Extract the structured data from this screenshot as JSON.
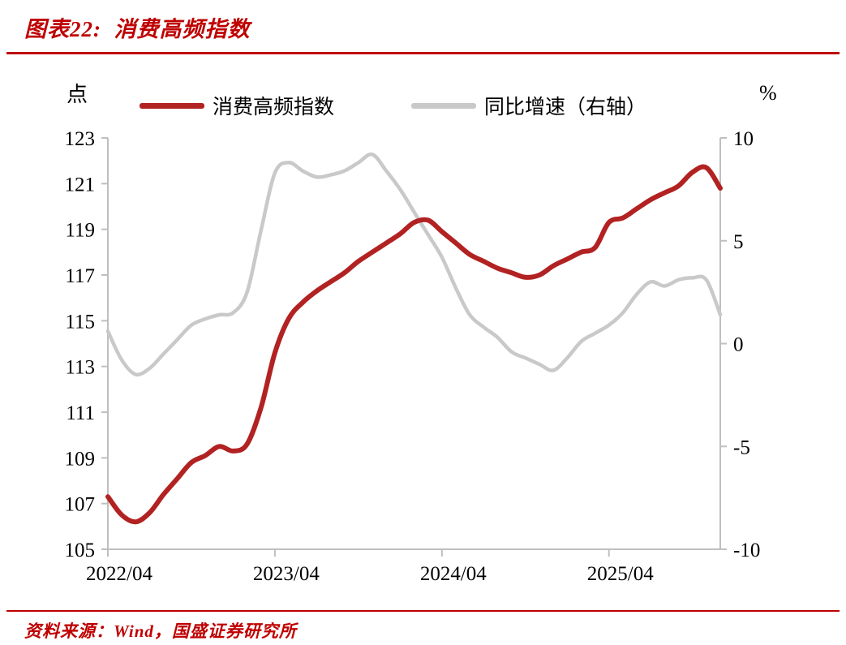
{
  "page": {
    "title": "图表22:  消费高频指数",
    "source": "资料来源：Wind，国盛证券研究所"
  },
  "colors": {
    "accent_red": "#bf0000",
    "line_red": "#b22222",
    "line_gray": "#c9c9c9",
    "axis_gray": "#bfbfbf",
    "text_black": "#000000"
  },
  "chart_data": {
    "type": "line",
    "title": "消费高频指数",
    "grid": false,
    "legend_position": "top",
    "left_axis": {
      "label": "点",
      "min": 105,
      "max": 123,
      "tick_step": 2,
      "ticks": [
        123,
        121,
        119,
        117,
        115,
        113,
        111,
        109,
        107,
        105
      ]
    },
    "right_axis": {
      "label": "%",
      "min": -10,
      "max": 10,
      "tick_step": 5,
      "ticks": [
        10,
        5,
        0,
        -5,
        -10
      ]
    },
    "x_tick_labels": [
      "2022/04",
      "2023/04",
      "2024/04",
      "2025/04"
    ],
    "x": [
      "2022/04",
      "2022/05",
      "2022/06",
      "2022/07",
      "2022/08",
      "2022/09",
      "2022/10",
      "2022/11",
      "2022/12",
      "2023/01",
      "2023/02",
      "2023/03",
      "2023/04",
      "2023/05",
      "2023/06",
      "2023/07",
      "2023/08",
      "2023/09",
      "2023/10",
      "2023/11",
      "2023/12",
      "2024/01",
      "2024/02",
      "2024/03",
      "2024/04",
      "2024/05",
      "2024/06",
      "2024/07",
      "2024/08",
      "2024/09",
      "2024/10",
      "2024/11",
      "2024/12",
      "2025/01",
      "2025/02",
      "2025/03",
      "2025/04",
      "2025/05",
      "2025/06",
      "2025/07",
      "2025/08",
      "2025/09",
      "2025/10",
      "2025/11",
      "2025/12"
    ],
    "series": [
      {
        "name": "消费高频指数",
        "axis": "left",
        "unit": "点",
        "color": "#b22222",
        "values": [
          107.3,
          106.5,
          106.2,
          106.6,
          107.4,
          108.1,
          108.8,
          109.1,
          109.5,
          109.3,
          109.6,
          111.2,
          113.6,
          115.1,
          115.8,
          116.3,
          116.7,
          117.1,
          117.6,
          118.0,
          118.4,
          118.8,
          119.3,
          119.4,
          118.9,
          118.4,
          117.9,
          117.6,
          117.3,
          117.1,
          116.9,
          117.0,
          117.4,
          117.7,
          118.0,
          118.2,
          119.3,
          119.5,
          119.9,
          120.3,
          120.6,
          120.9,
          121.5,
          121.7,
          120.8
        ]
      },
      {
        "name": "同比增速（右轴）",
        "axis": "right",
        "unit": "%",
        "color": "#c9c9c9",
        "values": [
          0.6,
          -0.8,
          -1.5,
          -1.2,
          -0.5,
          0.2,
          0.9,
          1.2,
          1.4,
          1.5,
          2.5,
          5.5,
          8.3,
          8.8,
          8.4,
          8.1,
          8.2,
          8.4,
          8.8,
          9.2,
          8.4,
          7.5,
          6.4,
          5.3,
          4.2,
          2.7,
          1.4,
          0.8,
          0.3,
          -0.4,
          -0.7,
          -1.0,
          -1.3,
          -0.7,
          0.1,
          0.5,
          0.9,
          1.5,
          2.4,
          3.0,
          2.8,
          3.1,
          3.2,
          3.1,
          1.4
        ]
      }
    ]
  }
}
